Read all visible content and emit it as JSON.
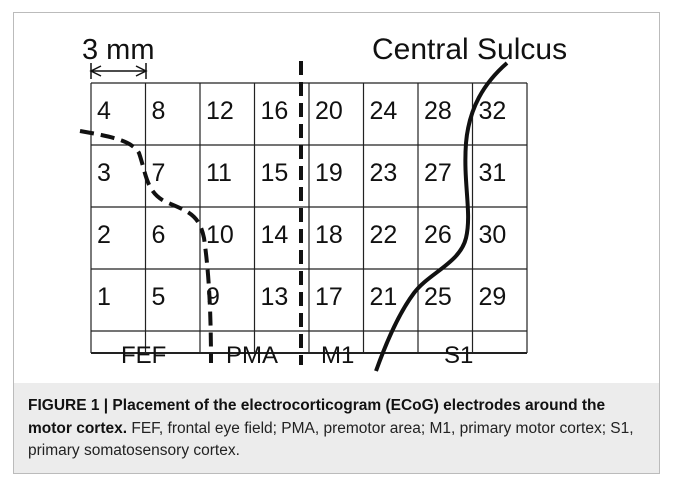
{
  "figure": {
    "scale_label": "3 mm",
    "sulcus_label": "Central Sulcus",
    "grid": [
      [
        4,
        8,
        12,
        16,
        20,
        24,
        28,
        32
      ],
      [
        3,
        7,
        11,
        15,
        19,
        23,
        27,
        31
      ],
      [
        2,
        6,
        10,
        14,
        18,
        22,
        26,
        30
      ],
      [
        1,
        5,
        9,
        13,
        17,
        21,
        25,
        29
      ]
    ],
    "regions": [
      "FEF",
      "PMA",
      "M1",
      "S1"
    ]
  },
  "caption": {
    "title": "FIGURE 1 | Placement of the electrocorticogram (ECoG) electrodes around the motor cortex.",
    "text": "FEF, frontal eye field; PMA, premotor area; M1, primary motor cortex; S1, primary somatosensory cortex."
  }
}
